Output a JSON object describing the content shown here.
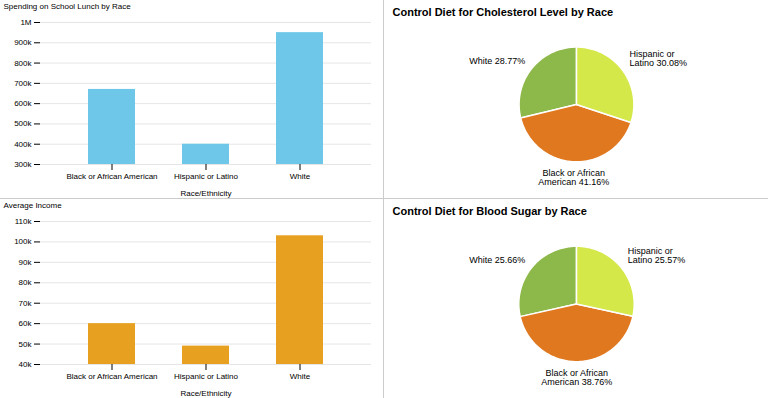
{
  "chart_data": [
    {
      "type": "bar",
      "categories": [
        "Black or African American",
        "Hispanic or Latino",
        "White"
      ],
      "values": [
        670000,
        400000,
        950000
      ],
      "color": "#6EC6E8",
      "xlabel": "Race/Ethnicity",
      "ylabel": "Spending on School Lunch by Race",
      "ylim": [
        300000,
        1000000
      ],
      "yticks": [
        {
          "value": 300000,
          "label": "300k"
        },
        {
          "value": 400000,
          "label": "400k"
        },
        {
          "value": 500000,
          "label": "500k"
        },
        {
          "value": 600000,
          "label": "600k"
        },
        {
          "value": 700000,
          "label": "700k"
        },
        {
          "value": 800000,
          "label": "800k"
        },
        {
          "value": 900000,
          "label": "900k"
        },
        {
          "value": 1000000,
          "label": "1M"
        }
      ],
      "grid": true
    },
    {
      "type": "bar",
      "categories": [
        "Black or African American",
        "Hispanic or Latino",
        "White"
      ],
      "values": [
        60000,
        49000,
        103000
      ],
      "color": "#E8A020",
      "xlabel": "Race/Ethnicity",
      "ylabel": "Average Income",
      "ylim": [
        40000,
        110000
      ],
      "yticks": [
        {
          "value": 40000,
          "label": "40k"
        },
        {
          "value": 50000,
          "label": "50k"
        },
        {
          "value": 60000,
          "label": "60k"
        },
        {
          "value": 70000,
          "label": "70k"
        },
        {
          "value": 80000,
          "label": "80k"
        },
        {
          "value": 90000,
          "label": "90k"
        },
        {
          "value": 100000,
          "label": "100k"
        },
        {
          "value": 110000,
          "label": "110k"
        }
      ],
      "grid": true
    },
    {
      "type": "pie",
      "title": "Control Diet for Cholesterol Level by Race",
      "categories": [
        "White",
        "Black or African American",
        "Hispanic or Latino"
      ],
      "values": [
        28.77,
        41.16,
        30.08
      ],
      "value_labels": [
        "White 28.77%",
        "Black or African\nAmerican 41.16%",
        "Hispanic or\nLatino 30.08%"
      ],
      "colors": [
        "#8DB84A",
        "#E07820",
        "#D4E84A"
      ],
      "data_labels": true
    },
    {
      "type": "pie",
      "title": "Control Diet for Blood Sugar by Race",
      "categories": [
        "White",
        "Black or African American",
        "Hispanic or Latino"
      ],
      "values": [
        25.66,
        38.76,
        25.57
      ],
      "value_labels": [
        "White 25.66%",
        "Black or African\nAmerican 38.76%",
        "Hispanic or\nLatino 25.57%"
      ],
      "colors": [
        "#8DB84A",
        "#E07820",
        "#D4E84A"
      ],
      "data_labels": true
    }
  ]
}
